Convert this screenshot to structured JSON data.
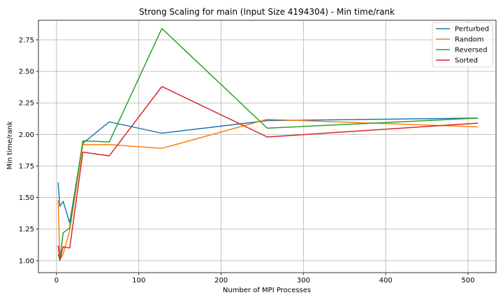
{
  "chart_data": {
    "type": "line",
    "title": "Strong Scaling for main (Input Size 4194304) - Min time/rank",
    "xlabel": "Number of MPI Processes",
    "ylabel": "Min time/rank",
    "xlim": [
      -22,
      534
    ],
    "ylim": [
      0.905,
      2.905
    ],
    "xticks": [
      0,
      100,
      200,
      300,
      400,
      500
    ],
    "yticks": [
      1.0,
      1.25,
      1.5,
      1.75,
      2.0,
      2.25,
      2.5,
      2.75
    ],
    "ytick_labels": [
      "1.00",
      "1.25",
      "1.50",
      "1.75",
      "2.00",
      "2.25",
      "2.50",
      "2.75"
    ],
    "grid": true,
    "legend_position": "top-right",
    "x": [
      2,
      4,
      8,
      16,
      32,
      64,
      128,
      256,
      512
    ],
    "series": [
      {
        "name": "Perturbed",
        "color": "#1f77b4",
        "values": [
          1.62,
          1.43,
          1.47,
          1.3,
          1.93,
          2.1,
          2.01,
          2.11,
          2.13
        ]
      },
      {
        "name": "Random",
        "color": "#ff7f0e",
        "values": [
          1.48,
          1.01,
          1.05,
          1.24,
          1.92,
          1.92,
          1.89,
          2.12,
          2.06
        ]
      },
      {
        "name": "Reversed",
        "color": "#2ca02c",
        "values": [
          1.05,
          1.01,
          1.22,
          1.26,
          1.95,
          1.94,
          2.84,
          2.05,
          2.13
        ]
      },
      {
        "name": "Sorted",
        "color": "#d62728",
        "values": [
          1.12,
          1.0,
          1.11,
          1.1,
          1.86,
          1.83,
          2.38,
          1.98,
          2.09
        ]
      }
    ]
  }
}
